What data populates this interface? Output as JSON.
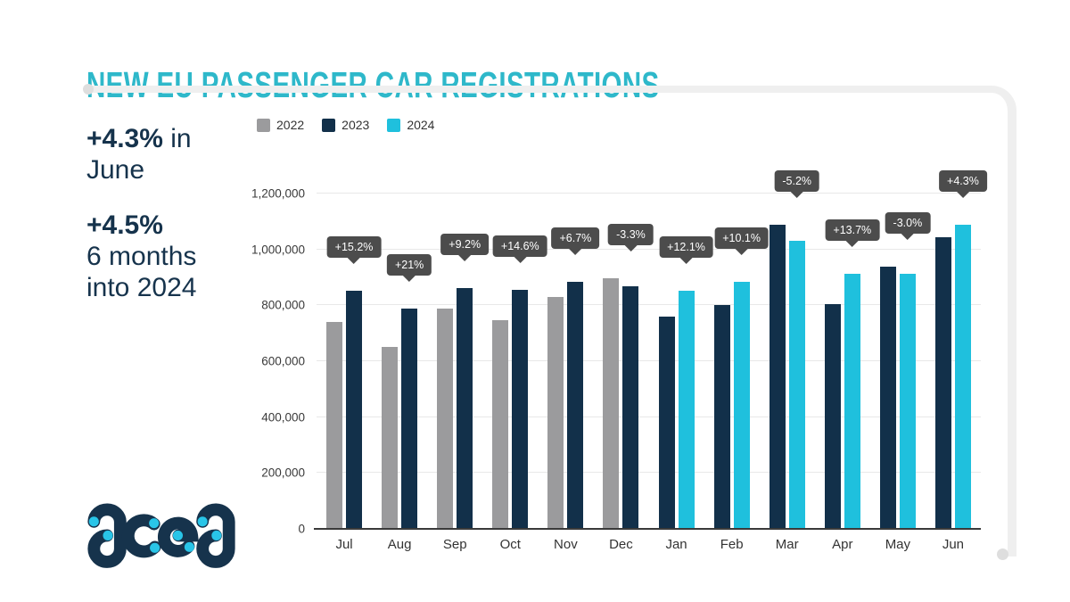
{
  "title": "NEW EU PASSENGER CAR REGISTRATIONS",
  "stats": {
    "june_value": "+4.3%",
    "june_suffix": "in",
    "june_line2": "June",
    "ytd_value": "+4.5%",
    "ytd_line2": "6 months",
    "ytd_line3": "into 2024"
  },
  "logo": {
    "text": "acea"
  },
  "colors": {
    "title_accent": "#2eb8ca",
    "text_navy": "#16334c",
    "badge_bg": "#4c4c4c",
    "frame_gray": "#efefef",
    "gridline": "#e8e8e8"
  },
  "chart_data": {
    "type": "bar",
    "title": "NEW EU PASSENGER CAR REGISTRATIONS",
    "categories": [
      "Jul",
      "Aug",
      "Sep",
      "Oct",
      "Nov",
      "Dec",
      "Jan",
      "Feb",
      "Mar",
      "Apr",
      "May",
      "Jun"
    ],
    "series": [
      {
        "name": "2022",
        "color": "#9b9b9d",
        "values": [
          739000,
          651000,
          788500,
          746500,
          830000,
          896600,
          null,
          null,
          null,
          null,
          null,
          null
        ]
      },
      {
        "name": "2023",
        "color": "#12304a",
        "values": [
          851156,
          787626,
          861062,
          855484,
          885581,
          867052,
          759760,
          802550,
          1088476,
          803865,
          939890,
          1044990
        ]
      },
      {
        "name": "2024",
        "color": "#1fc0dd",
        "values": [
          null,
          null,
          null,
          null,
          null,
          null,
          851690,
          883608,
          1031875,
          913995,
          911697,
          1089925
        ]
      }
    ],
    "annotations": [
      "+15.2%",
      "+21%",
      "+9.2%",
      "+14.6%",
      "+6.7%",
      "-3.3%",
      "+12.1%",
      "+10.1%",
      "-5.2%",
      "+13.7%",
      "-3.0%",
      "+4.3%"
    ],
    "xlabel": "",
    "ylabel": "",
    "ylim": [
      0,
      1200000
    ],
    "ytick_step": 200000,
    "grid": true,
    "legend_position": "top-left"
  }
}
